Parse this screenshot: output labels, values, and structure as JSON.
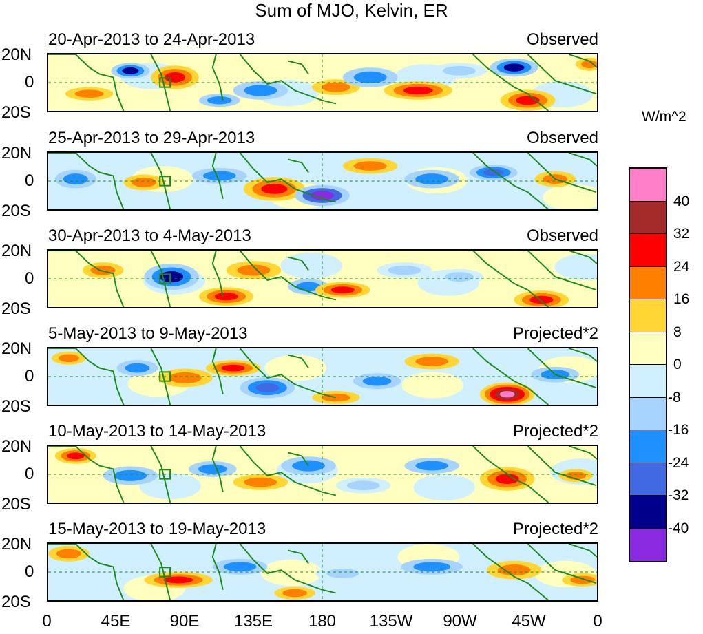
{
  "title": "Sum of MJO, Kelvin, ER",
  "units": "W/m^2",
  "panels": [
    {
      "date": "20-Apr-2013 to 24-Apr-2013",
      "label": "Observed"
    },
    {
      "date": "25-Apr-2013 to 29-Apr-2013",
      "label": "Observed"
    },
    {
      "date": "30-Apr-2013 to 4-May-2013",
      "label": "Observed"
    },
    {
      "date": "5-May-2013 to 9-May-2013",
      "label": "Projected*2"
    },
    {
      "date": "10-May-2013 to 14-May-2013",
      "label": "Projected*2"
    },
    {
      "date": "15-May-2013 to 19-May-2013",
      "label": "Projected*2"
    }
  ],
  "lat_labels": [
    "20N",
    "0",
    "20S"
  ],
  "lon_labels": [
    "0",
    "45E",
    "90E",
    "135E",
    "180",
    "135W",
    "90W",
    "45W",
    "0"
  ],
  "colorbar": {
    "ticks": [
      "40",
      "32",
      "24",
      "16",
      "8",
      "0",
      "-8",
      "-16",
      "-24",
      "-32",
      "-40"
    ],
    "colors": [
      "#ff7fc8",
      "#a52a2a",
      "#ff0000",
      "#ff7f00",
      "#ffd633",
      "#ffffc0",
      "#d0f0ff",
      "#a6d4ff",
      "#1e90ff",
      "#4169e1",
      "#00008b",
      "#8a2be2"
    ]
  }
}
